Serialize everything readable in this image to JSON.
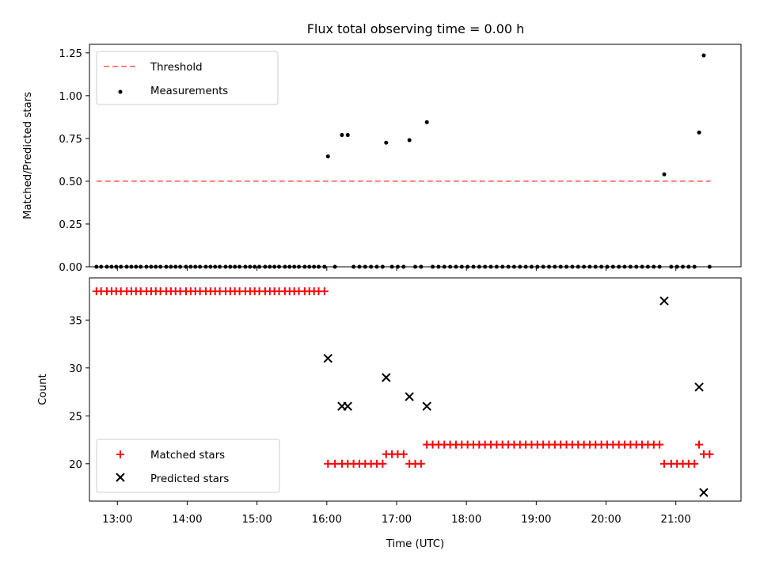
{
  "chart_data": [
    {
      "type": "scatter",
      "title": "Flux total observing time = 0.00 h",
      "xlabel": "",
      "ylabel": "Matched/Predicted stars",
      "xlim": [
        "12:36",
        "21:56"
      ],
      "ylim": [
        0,
        1.3
      ],
      "yticks": [
        "0.00",
        "0.25",
        "0.50",
        "0.75",
        "1.00",
        "1.25"
      ],
      "grid": false,
      "legend_position": "upper left",
      "series": [
        {
          "name": "Threshold",
          "kind": "dashed-line",
          "color": "#ff7f7f",
          "x": [
            "12:42",
            "21:30"
          ],
          "y": [
            0.5,
            0.5
          ]
        },
        {
          "name": "Measurements",
          "kind": "points",
          "color": "#000000",
          "x": [
            "12:42",
            "12:46",
            "12:51",
            "12:55",
            "12:59",
            "13:03",
            "13:08",
            "13:12",
            "13:16",
            "13:20",
            "13:25",
            "13:29",
            "13:33",
            "13:37",
            "13:42",
            "13:46",
            "13:50",
            "13:54",
            "13:59",
            "14:03",
            "14:07",
            "14:11",
            "14:16",
            "14:20",
            "14:24",
            "14:28",
            "14:33",
            "14:37",
            "14:41",
            "14:45",
            "14:50",
            "14:54",
            "14:58",
            "15:02",
            "15:07",
            "15:11",
            "15:15",
            "15:19",
            "15:24",
            "15:28",
            "15:32",
            "15:36",
            "15:41",
            "15:45",
            "15:49",
            "15:53",
            "15:58",
            "16:01",
            "16:07",
            "16:13",
            "16:18",
            "16:23",
            "16:28",
            "16:33",
            "16:38",
            "16:43",
            "16:48",
            "16:51",
            "16:56",
            "17:01",
            "17:06",
            "17:11",
            "17:16",
            "17:21",
            "17:26",
            "17:31",
            "17:36",
            "17:41",
            "17:46",
            "17:51",
            "17:56",
            "18:01",
            "18:06",
            "18:11",
            "18:16",
            "18:21",
            "18:26",
            "18:31",
            "18:36",
            "18:41",
            "18:46",
            "18:51",
            "18:56",
            "19:01",
            "19:06",
            "19:11",
            "19:16",
            "19:21",
            "19:26",
            "19:31",
            "19:36",
            "19:41",
            "19:46",
            "19:51",
            "19:56",
            "20:01",
            "20:06",
            "20:11",
            "20:16",
            "20:21",
            "20:26",
            "20:31",
            "20:36",
            "20:41",
            "20:46",
            "20:50",
            "20:56",
            "21:01",
            "21:06",
            "21:11",
            "21:16",
            "21:20",
            "21:24",
            "21:29"
          ],
          "y": [
            0,
            0,
            0,
            0,
            0,
            0,
            0,
            0,
            0,
            0,
            0,
            0,
            0,
            0,
            0,
            0,
            0,
            0,
            0,
            0,
            0,
            0,
            0,
            0,
            0,
            0,
            0,
            0,
            0,
            0,
            0,
            0,
            0,
            0,
            0,
            0,
            0,
            0,
            0,
            0,
            0,
            0,
            0,
            0,
            0,
            0,
            0,
            0.645,
            0,
            0.77,
            0.77,
            0,
            0,
            0,
            0,
            0,
            0,
            0.725,
            0,
            0,
            0,
            0.74,
            0,
            0,
            0.845,
            0,
            0,
            0,
            0,
            0,
            0,
            0,
            0,
            0,
            0,
            0,
            0,
            0,
            0,
            0,
            0,
            0,
            0,
            0,
            0,
            0,
            0,
            0,
            0,
            0,
            0,
            0,
            0,
            0,
            0,
            0,
            0,
            0,
            0,
            0,
            0,
            0,
            0,
            0,
            0,
            0.54,
            0,
            0,
            0,
            0,
            0,
            0.785,
            1.235,
            0
          ]
        }
      ]
    },
    {
      "type": "scatter",
      "title": "",
      "xlabel": "Time (UTC)",
      "ylabel": "Count",
      "xlim": [
        "12:36",
        "21:56"
      ],
      "ylim": [
        16.1,
        39.4
      ],
      "xticks": [
        "13:00",
        "14:00",
        "15:00",
        "16:00",
        "17:00",
        "18:00",
        "19:00",
        "20:00",
        "21:00"
      ],
      "yticks": [
        "20",
        "25",
        "30",
        "35"
      ],
      "grid": false,
      "legend_position": "lower left",
      "series": [
        {
          "name": "Matched stars",
          "marker": "plus",
          "color": "#ff0000",
          "x": [
            "12:42",
            "12:46",
            "12:51",
            "12:55",
            "12:59",
            "13:03",
            "13:08",
            "13:12",
            "13:16",
            "13:20",
            "13:25",
            "13:29",
            "13:33",
            "13:37",
            "13:42",
            "13:46",
            "13:50",
            "13:54",
            "13:59",
            "14:03",
            "14:07",
            "14:11",
            "14:16",
            "14:20",
            "14:24",
            "14:28",
            "14:33",
            "14:37",
            "14:41",
            "14:45",
            "14:50",
            "14:54",
            "14:58",
            "15:02",
            "15:07",
            "15:11",
            "15:15",
            "15:19",
            "15:24",
            "15:28",
            "15:32",
            "15:36",
            "15:41",
            "15:45",
            "15:49",
            "15:53",
            "15:58",
            "16:01",
            "16:07",
            "16:13",
            "16:18",
            "16:23",
            "16:28",
            "16:33",
            "16:38",
            "16:43",
            "16:48",
            "16:51",
            "16:56",
            "17:01",
            "17:06",
            "17:11",
            "17:16",
            "17:21",
            "17:26",
            "17:31",
            "17:36",
            "17:41",
            "17:46",
            "17:51",
            "17:56",
            "18:01",
            "18:06",
            "18:11",
            "18:16",
            "18:21",
            "18:26",
            "18:31",
            "18:36",
            "18:41",
            "18:46",
            "18:51",
            "18:56",
            "19:01",
            "19:06",
            "19:11",
            "19:16",
            "19:21",
            "19:26",
            "19:31",
            "19:36",
            "19:41",
            "19:46",
            "19:51",
            "19:56",
            "20:01",
            "20:06",
            "20:11",
            "20:16",
            "20:21",
            "20:26",
            "20:31",
            "20:36",
            "20:41",
            "20:46",
            "20:50",
            "20:56",
            "21:01",
            "21:06",
            "21:11",
            "21:16",
            "21:20",
            "21:24",
            "21:29"
          ],
          "y": [
            38,
            38,
            38,
            38,
            38,
            38,
            38,
            38,
            38,
            38,
            38,
            38,
            38,
            38,
            38,
            38,
            38,
            38,
            38,
            38,
            38,
            38,
            38,
            38,
            38,
            38,
            38,
            38,
            38,
            38,
            38,
            38,
            38,
            38,
            38,
            38,
            38,
            38,
            38,
            38,
            38,
            38,
            38,
            38,
            38,
            38,
            38,
            20,
            20,
            20,
            20,
            20,
            20,
            20,
            20,
            20,
            20,
            21,
            21,
            21,
            21,
            20,
            20,
            20,
            22,
            22,
            22,
            22,
            22,
            22,
            22,
            22,
            22,
            22,
            22,
            22,
            22,
            22,
            22,
            22,
            22,
            22,
            22,
            22,
            22,
            22,
            22,
            22,
            22,
            22,
            22,
            22,
            22,
            22,
            22,
            22,
            22,
            22,
            22,
            22,
            22,
            22,
            22,
            22,
            22,
            20,
            20,
            20,
            20,
            20,
            20,
            22,
            21,
            21
          ]
        },
        {
          "name": "Predicted stars",
          "marker": "x",
          "color": "#000000",
          "x": [
            "16:01",
            "16:13",
            "16:18",
            "16:51",
            "17:11",
            "17:26",
            "20:50",
            "21:20",
            "21:24"
          ],
          "y": [
            31,
            26,
            26,
            29,
            27,
            26,
            37,
            28,
            17
          ]
        }
      ]
    }
  ]
}
